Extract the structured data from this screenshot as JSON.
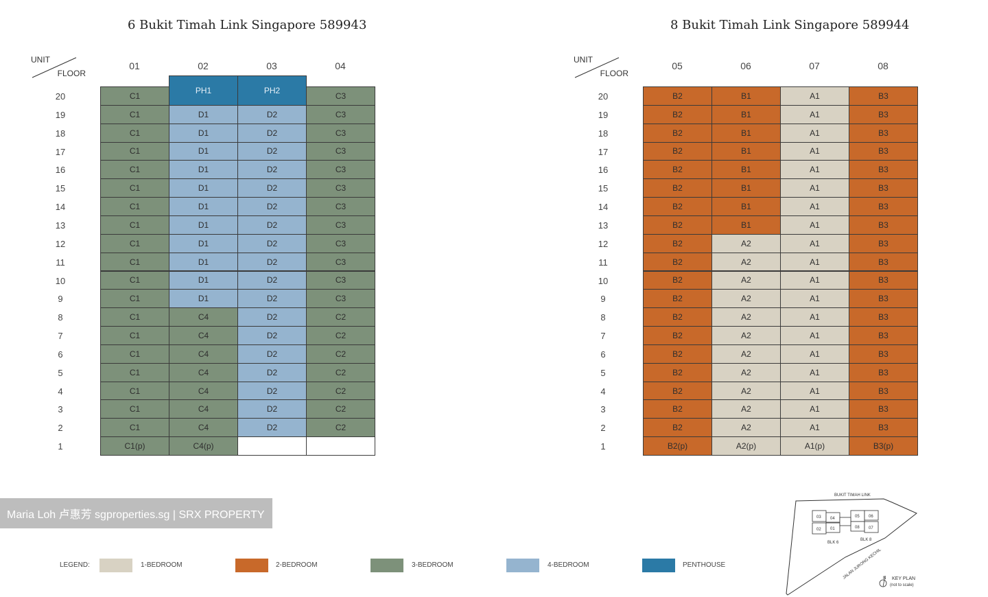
{
  "blocks": [
    {
      "title": "6 Bukit Timah Link Singapore 589943",
      "corner_unit": "UNIT",
      "corner_floor": "FLOOR",
      "units": [
        "01",
        "02",
        "03",
        "04"
      ],
      "floors": [
        "20",
        "19",
        "18",
        "17",
        "16",
        "15",
        "14",
        "13",
        "12",
        "11",
        "10",
        "9",
        "8",
        "7",
        "6",
        "5",
        "4",
        "3",
        "2",
        "1"
      ],
      "rows": [
        [
          "C1",
          "PH1",
          "PH2",
          "C3"
        ],
        [
          "C1",
          "D1",
          "D2",
          "C3"
        ],
        [
          "C1",
          "D1",
          "D2",
          "C3"
        ],
        [
          "C1",
          "D1",
          "D2",
          "C3"
        ],
        [
          "C1",
          "D1",
          "D2",
          "C3"
        ],
        [
          "C1",
          "D1",
          "D2",
          "C3"
        ],
        [
          "C1",
          "D1",
          "D2",
          "C3"
        ],
        [
          "C1",
          "D1",
          "D2",
          "C3"
        ],
        [
          "C1",
          "D1",
          "D2",
          "C3"
        ],
        [
          "C1",
          "D1",
          "D2",
          "C3"
        ],
        [
          "C1",
          "D1",
          "D2",
          "C3"
        ],
        [
          "C1",
          "D1",
          "D2",
          "C3"
        ],
        [
          "C1",
          "C4",
          "D2",
          "C2"
        ],
        [
          "C1",
          "C4",
          "D2",
          "C2"
        ],
        [
          "C1",
          "C4",
          "D2",
          "C2"
        ],
        [
          "C1",
          "C4",
          "D2",
          "C2"
        ],
        [
          "C1",
          "C4",
          "D2",
          "C2"
        ],
        [
          "C1",
          "C4",
          "D2",
          "C2"
        ],
        [
          "C1",
          "C4",
          "D2",
          "C2"
        ],
        [
          "C1(p)",
          "C4(p)",
          "",
          ""
        ]
      ]
    },
    {
      "title": "8 Bukit Timah Link Singapore 589944",
      "corner_unit": "UNIT",
      "corner_floor": "FLOOR",
      "units": [
        "05",
        "06",
        "07",
        "08"
      ],
      "floors": [
        "20",
        "19",
        "18",
        "17",
        "16",
        "15",
        "14",
        "13",
        "12",
        "11",
        "10",
        "9",
        "8",
        "7",
        "6",
        "5",
        "4",
        "3",
        "2",
        "1"
      ],
      "rows": [
        [
          "B2",
          "B1",
          "A1",
          "B3"
        ],
        [
          "B2",
          "B1",
          "A1",
          "B3"
        ],
        [
          "B2",
          "B1",
          "A1",
          "B3"
        ],
        [
          "B2",
          "B1",
          "A1",
          "B3"
        ],
        [
          "B2",
          "B1",
          "A1",
          "B3"
        ],
        [
          "B2",
          "B1",
          "A1",
          "B3"
        ],
        [
          "B2",
          "B1",
          "A1",
          "B3"
        ],
        [
          "B2",
          "B1",
          "A1",
          "B3"
        ],
        [
          "B2",
          "A2",
          "A1",
          "B3"
        ],
        [
          "B2",
          "A2",
          "A1",
          "B3"
        ],
        [
          "B2",
          "A2",
          "A1",
          "B3"
        ],
        [
          "B2",
          "A2",
          "A1",
          "B3"
        ],
        [
          "B2",
          "A2",
          "A1",
          "B3"
        ],
        [
          "B2",
          "A2",
          "A1",
          "B3"
        ],
        [
          "B2",
          "A2",
          "A1",
          "B3"
        ],
        [
          "B2",
          "A2",
          "A1",
          "B3"
        ],
        [
          "B2",
          "A2",
          "A1",
          "B3"
        ],
        [
          "B2",
          "A2",
          "A1",
          "B3"
        ],
        [
          "B2",
          "A2",
          "A1",
          "B3"
        ],
        [
          "B2(p)",
          "A2(p)",
          "A1(p)",
          "B3(p)"
        ]
      ]
    }
  ],
  "colors": {
    "one_bedroom": "#d8d2c3",
    "two_bedroom": "#c8692a",
    "three_bedroom": "#7d917a",
    "four_bedroom": "#95b4cf",
    "penthouse": "#2b7aa6",
    "empty": "#ffffff"
  },
  "legend": {
    "title": "LEGEND:",
    "items": [
      {
        "label": "1-BEDROOM",
        "color": "#d8d2c3"
      },
      {
        "label": "2-BEDROOM",
        "color": "#c8692a"
      },
      {
        "label": "3-BEDROOM",
        "color": "#7d917a"
      },
      {
        "label": "4-BEDROOM",
        "color": "#95b4cf"
      },
      {
        "label": "PENTHOUSE",
        "color": "#2b7aa6"
      }
    ]
  },
  "watermark": "Maria Loh 卢惠芳 sgproperties.sg | SRX PROPERTY",
  "key_plan": {
    "road_top": "BUKIT TIMAH LINK",
    "road_side": "JALAN JURONG KECHIL",
    "blk6": "BLK 6",
    "blk8": "BLK 8",
    "label": "KEY PLAN",
    "note": "(not to scale)",
    "north": "N",
    "unit_labels": [
      "03",
      "04",
      "05",
      "06",
      "02",
      "01",
      "08",
      "07"
    ]
  }
}
